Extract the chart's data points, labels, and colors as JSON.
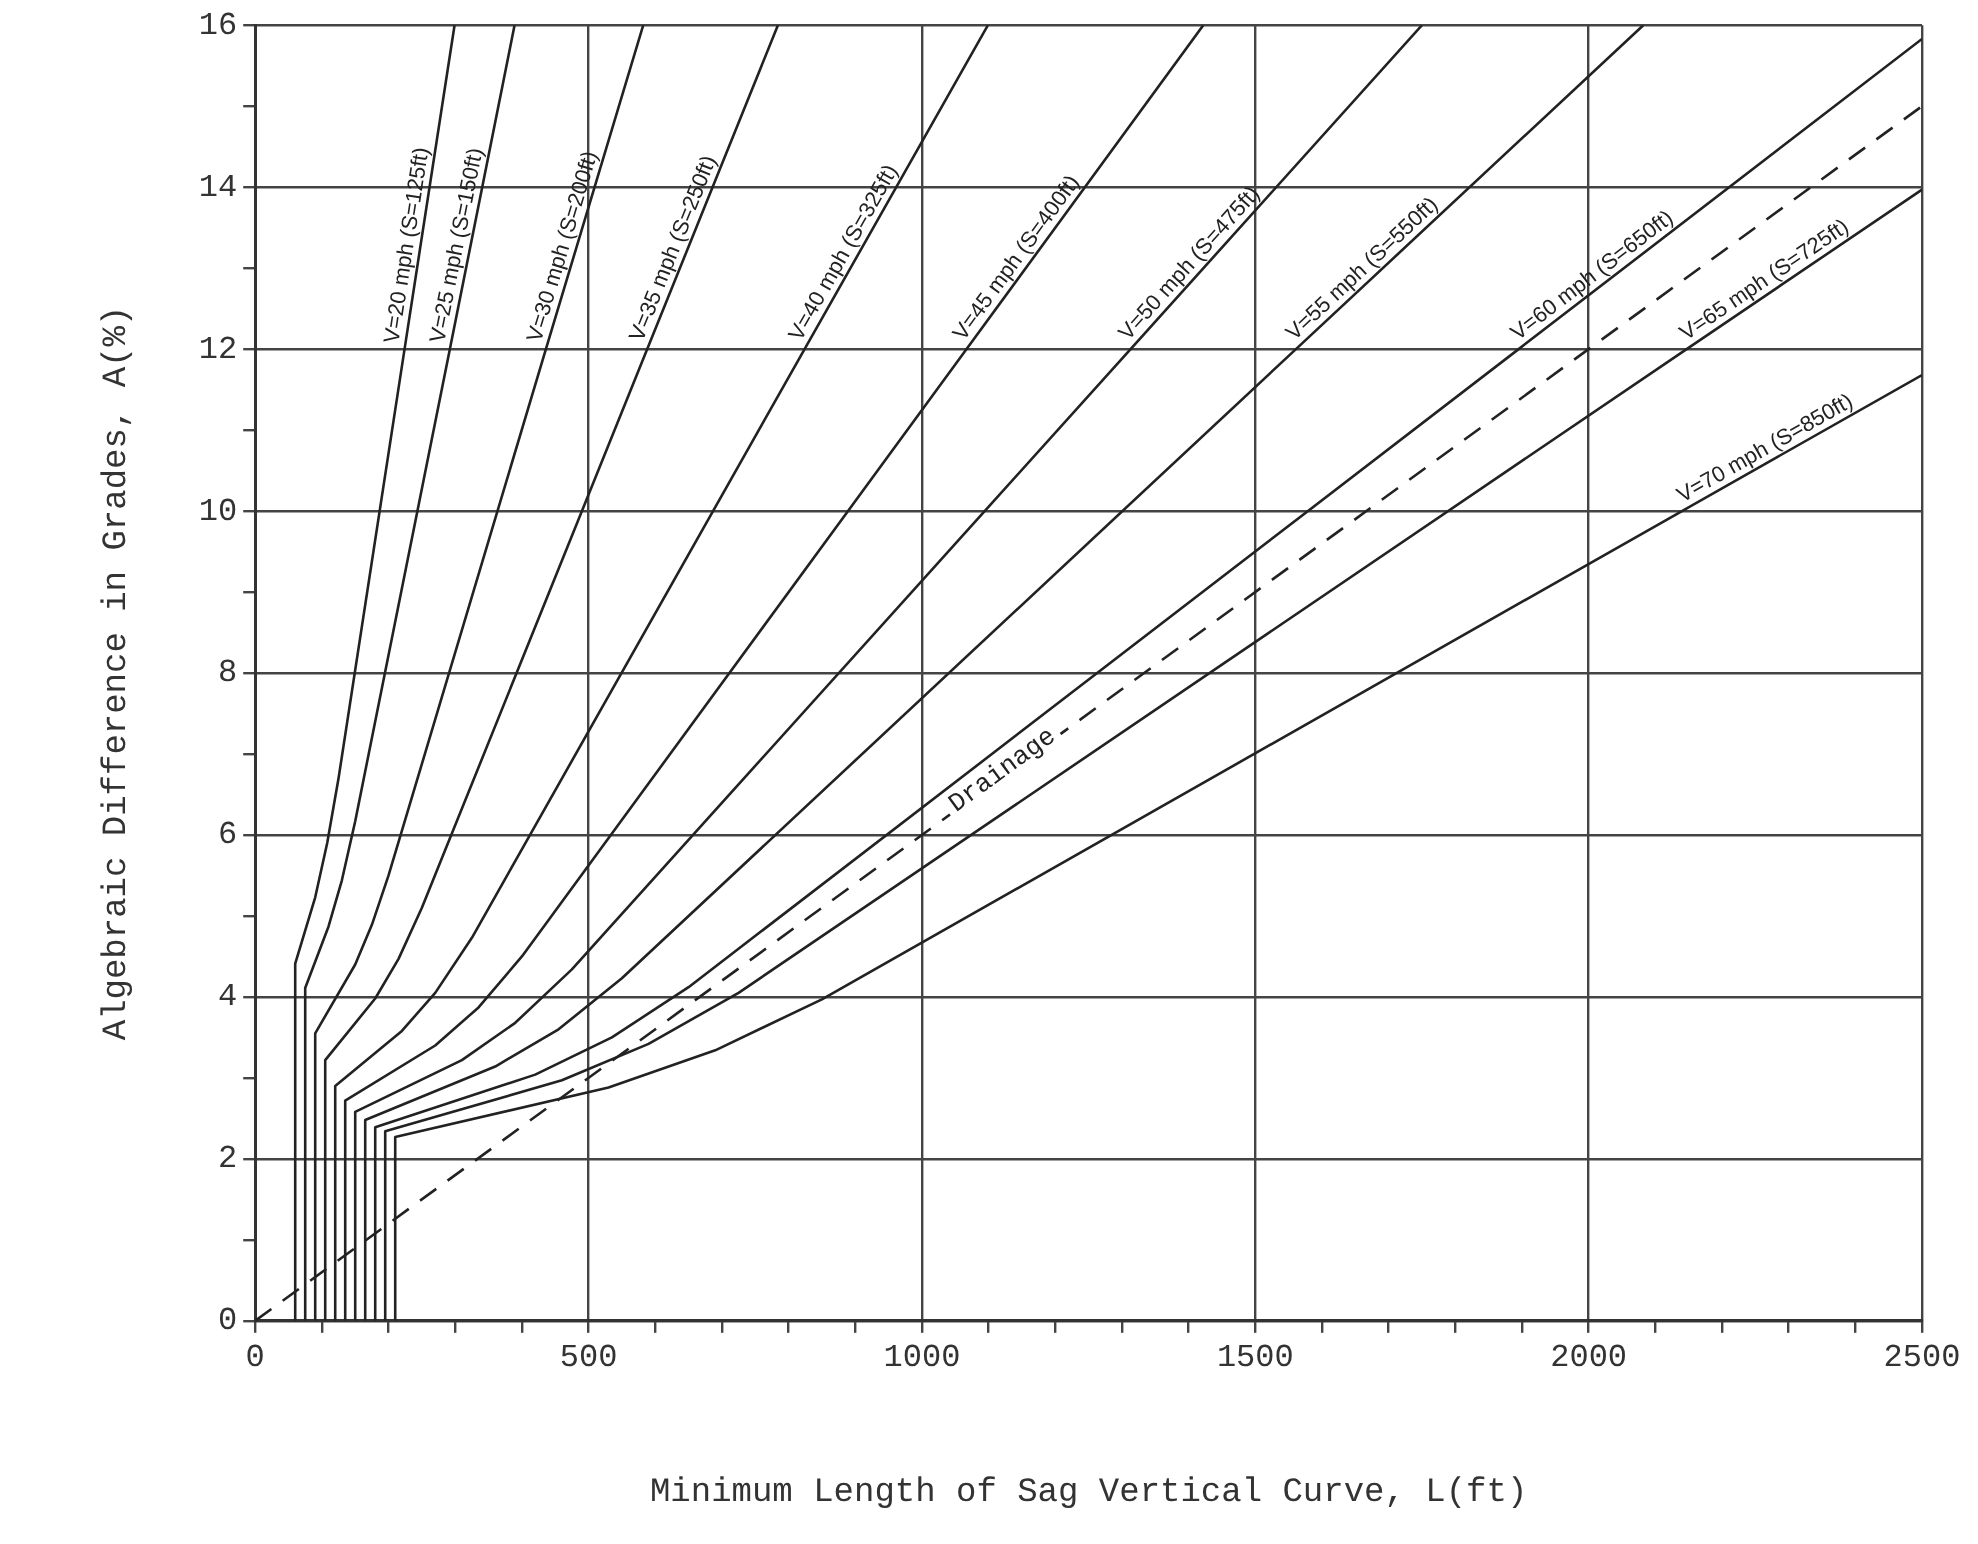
{
  "chart_data": {
    "type": "line",
    "xlabel": "Minimum Length of Sag Vertical Curve, L(ft)",
    "ylabel": "Algebraic Difference in Grades, A(%)",
    "xlim": [
      0,
      2500
    ],
    "ylim": [
      0,
      16
    ],
    "xticks": [
      0,
      {
        "value": 100,
        "label": null
      },
      {
        "value": 200,
        "label": null
      },
      {
        "value": 300,
        "label": null
      },
      {
        "value": 400,
        "label": null
      },
      500,
      {
        "value": 600,
        "label": null
      },
      {
        "value": 700,
        "label": null
      },
      {
        "value": 800,
        "label": null
      },
      {
        "value": 900,
        "label": null
      },
      1000,
      {
        "value": 1100,
        "label": null
      },
      {
        "value": 1200,
        "label": null
      },
      {
        "value": 1300,
        "label": null
      },
      {
        "value": 1400,
        "label": null
      },
      1500,
      {
        "value": 1600,
        "label": null
      },
      {
        "value": 1700,
        "label": null
      },
      {
        "value": 1800,
        "label": null
      },
      {
        "value": 1900,
        "label": null
      },
      2000,
      {
        "value": 2100,
        "label": null
      },
      {
        "value": 2200,
        "label": null
      },
      {
        "value": 2300,
        "label": null
      },
      {
        "value": 2400,
        "label": null
      },
      2500
    ],
    "yticks": [
      0,
      {
        "value": 1,
        "label": null
      },
      2,
      {
        "value": 3,
        "label": null
      },
      4,
      {
        "value": 5,
        "label": null
      },
      6,
      {
        "value": 7,
        "label": null
      },
      8,
      {
        "value": 9,
        "label": null
      },
      10,
      {
        "value": 11,
        "label": null
      },
      12,
      {
        "value": 13,
        "label": null
      },
      14,
      {
        "value": 15,
        "label": null
      },
      16
    ],
    "grid": true,
    "legend": false,
    "marker": "none",
    "line_style": "solid",
    "series": [
      {
        "name": "V=20 mph (S=125ft)",
        "color": "#222222",
        "x": [
          60,
          60,
          90,
          108,
          125,
          224,
          299
        ],
        "values": [
          0,
          4.41,
          5.23,
          5.9,
          6.7,
          12,
          16
        ]
      },
      {
        "name": "V=25 mph (S=150ft)",
        "color": "#222222",
        "x": [
          75,
          75,
          110,
          130,
          150,
          292,
          389
        ],
        "values": [
          0,
          4.11,
          4.87,
          5.44,
          6.17,
          12,
          16
        ]
      },
      {
        "name": "V=30 mph (S=200ft)",
        "color": "#222222",
        "x": [
          90,
          90,
          150,
          175,
          200,
          436,
          582
        ],
        "values": [
          0,
          3.55,
          4.4,
          4.89,
          5.5,
          12,
          16
        ]
      },
      {
        "name": "V=35 mph (S=250ft)",
        "color": "#222222",
        "x": [
          105,
          105,
          180,
          215,
          250,
          588,
          784
        ],
        "values": [
          0,
          3.22,
          3.98,
          4.47,
          5.1,
          12,
          16
        ]
      },
      {
        "name": "V=40 mph (S=325ft)",
        "color": "#222222",
        "x": [
          120,
          120,
          220,
          270,
          325,
          824,
          1099
        ],
        "values": [
          0,
          2.9,
          3.58,
          4.05,
          4.73,
          12,
          16
        ]
      },
      {
        "name": "V=45 mph (S=400ft)",
        "color": "#222222",
        "x": [
          135,
          135,
          270,
          335,
          400,
          1067,
          1422
        ],
        "values": [
          0,
          2.72,
          3.4,
          3.87,
          4.5,
          12,
          16
        ]
      },
      {
        "name": "V=50 mph (S=475ft)",
        "color": "#222222",
        "x": [
          150,
          150,
          310,
          390,
          475,
          1313,
          1750
        ],
        "values": [
          0,
          2.58,
          3.22,
          3.68,
          4.34,
          12,
          16
        ]
      },
      {
        "name": "V=55 mph (S=550ft)",
        "color": "#222222",
        "x": [
          165,
          165,
          360,
          455,
          550,
          1561,
          2082
        ],
        "values": [
          0,
          2.48,
          3.14,
          3.6,
          4.23,
          12,
          16
        ]
      },
      {
        "name": "V=60 mph (S=650ft)",
        "color": "#222222",
        "x": [
          180,
          180,
          420,
          535,
          650,
          1895,
          2500
        ],
        "values": [
          0,
          2.39,
          3.04,
          3.5,
          4.12,
          12,
          15.83
        ]
      },
      {
        "name": "V=65 mph (S=725ft)",
        "color": "#222222",
        "x": [
          195,
          195,
          460,
          590,
          725,
          2147,
          2500
        ],
        "values": [
          0,
          2.34,
          2.97,
          3.42,
          4.05,
          12,
          13.97
        ]
      },
      {
        "name": "V=70 mph (S=850ft)",
        "color": "#222222",
        "x": [
          210,
          210,
          530,
          690,
          850,
          2140,
          2500
        ],
        "values": [
          0,
          2.27,
          2.88,
          3.34,
          3.97,
          10,
          11.68
        ]
      },
      {
        "name": "Drainage",
        "color": "#222222",
        "line_style": "dashed",
        "x": [
          0,
          2500
        ],
        "values": [
          0,
          15
        ]
      }
    ]
  }
}
